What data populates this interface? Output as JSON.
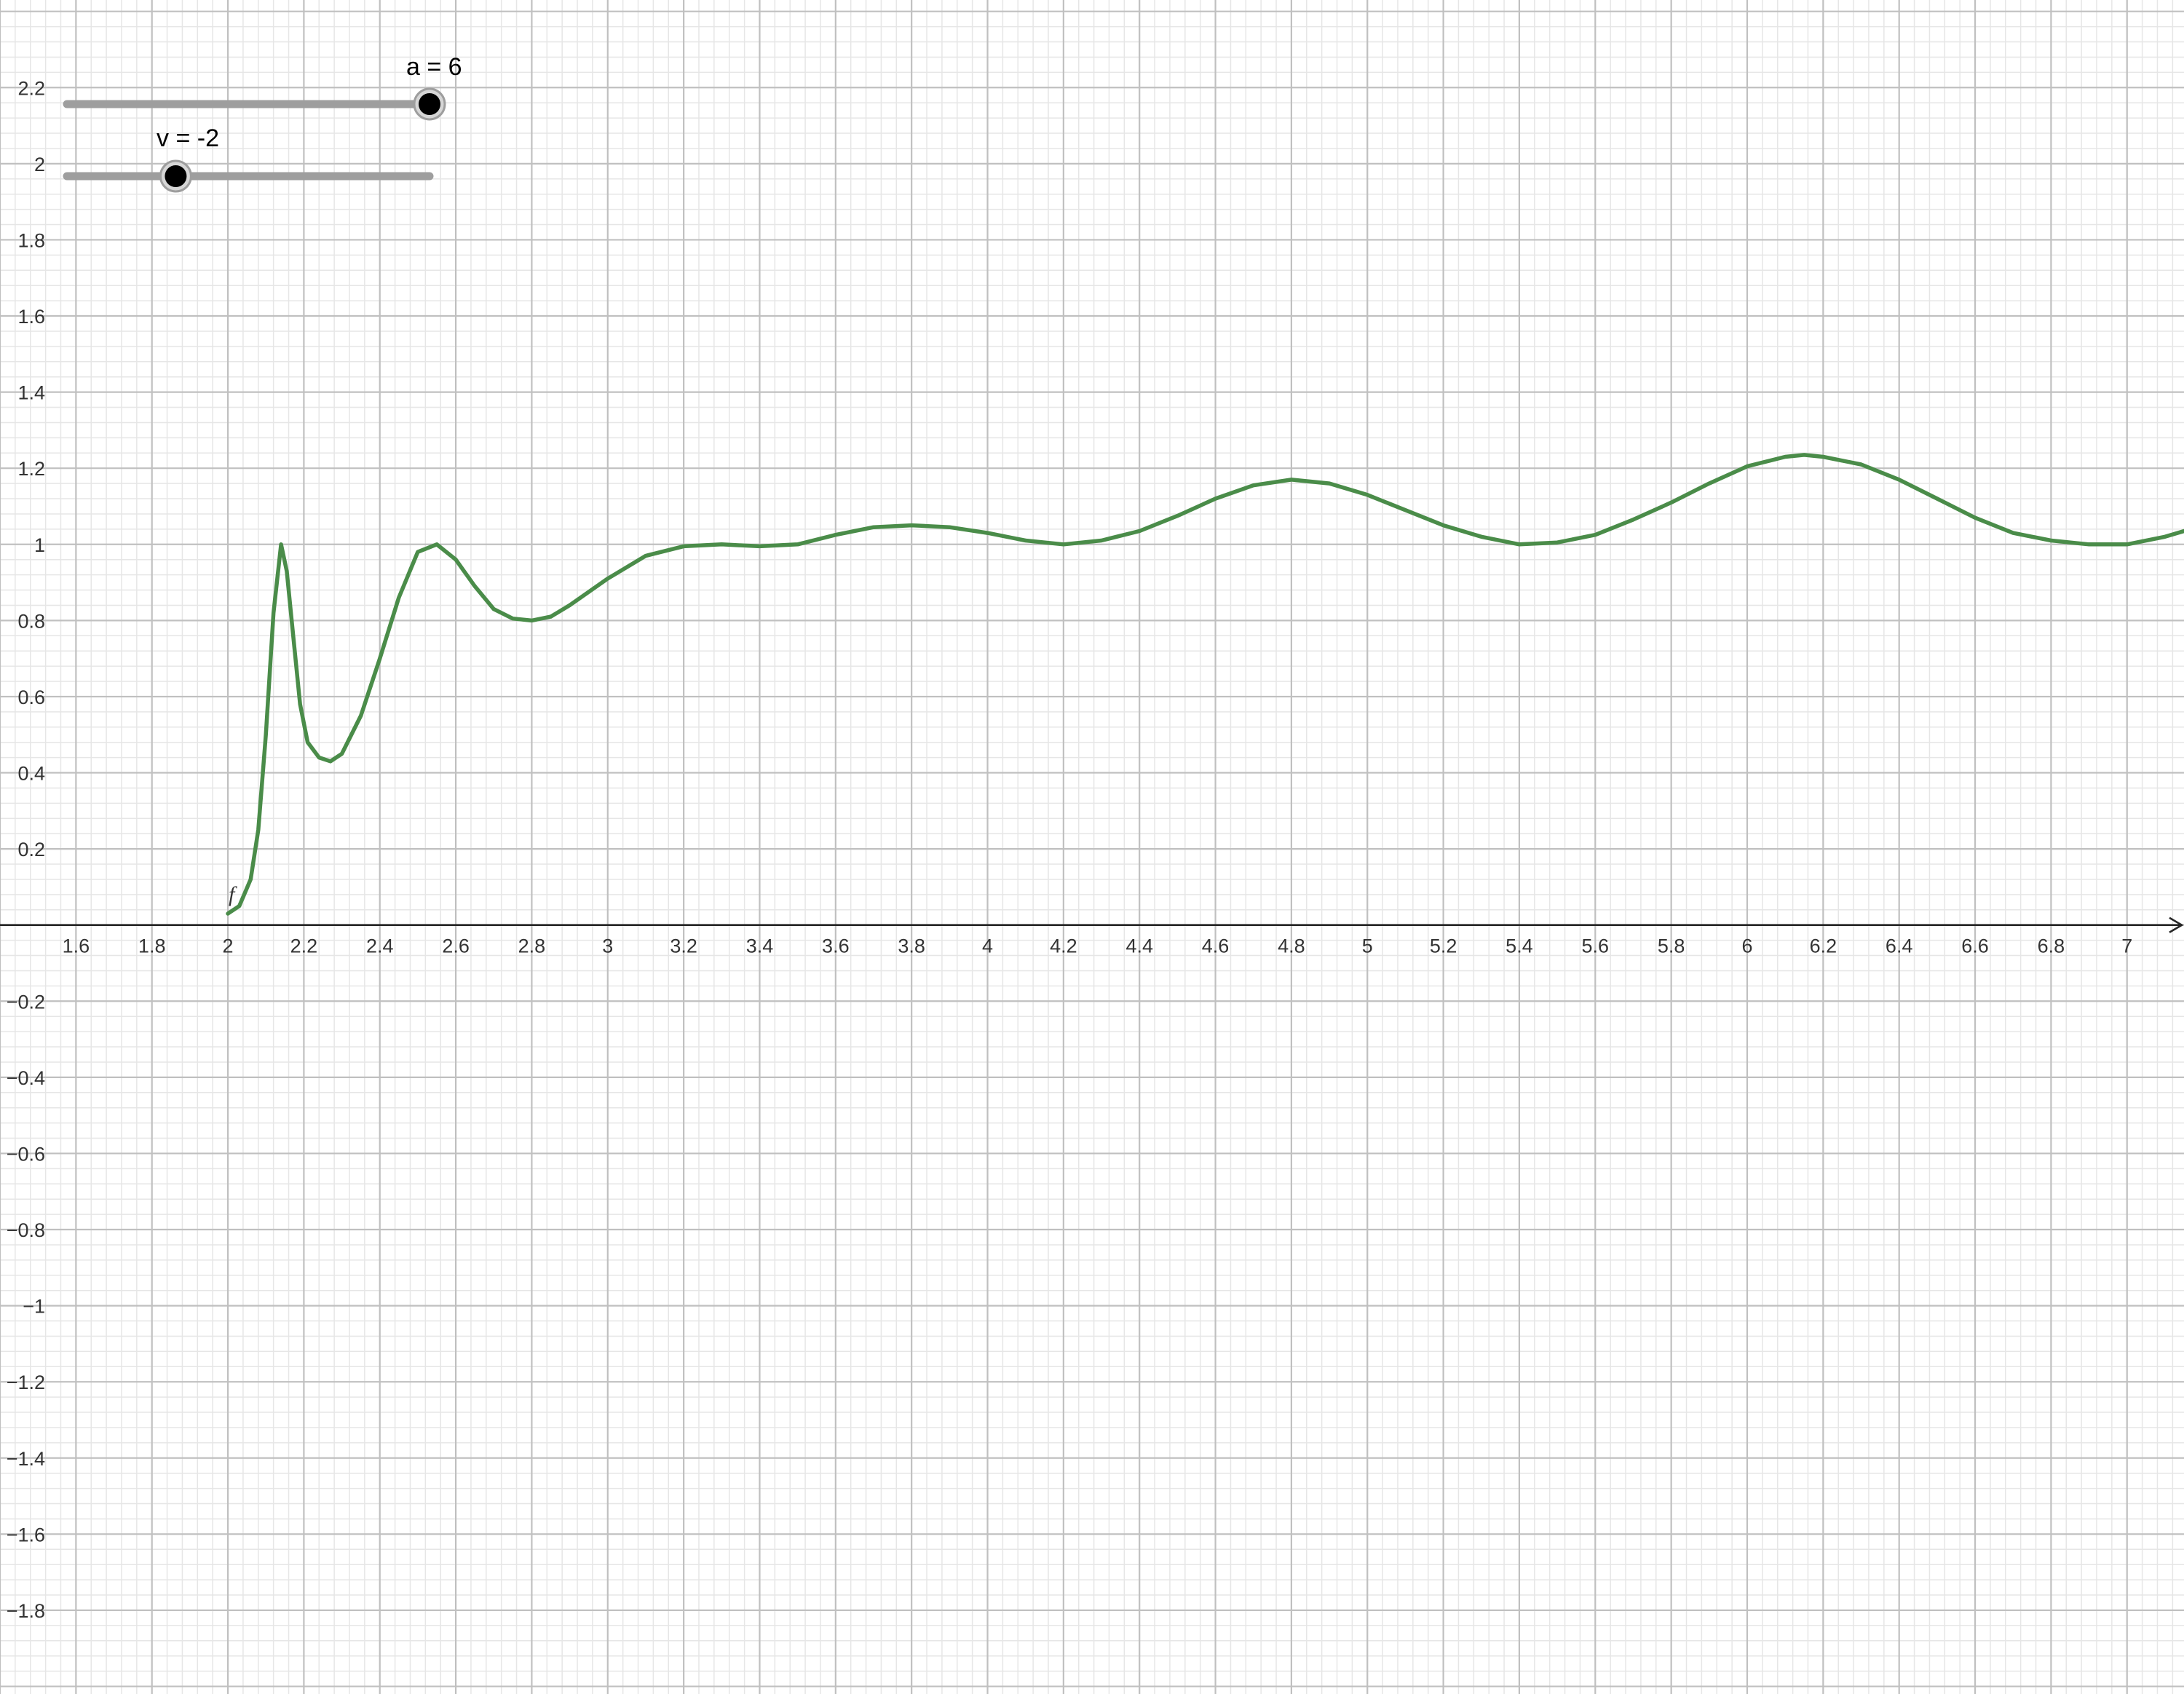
{
  "app": {
    "graph_view": {
      "x_axis": {
        "min": 1.4,
        "max": 7.15,
        "ticks": [
          "1.6",
          "1.8",
          "2",
          "2.2",
          "2.4",
          "2.6",
          "2.8",
          "3",
          "3.2",
          "3.4",
          "3.6",
          "3.8",
          "4",
          "4.2",
          "4.4",
          "4.6",
          "4.8",
          "5",
          "5.2",
          "5.4",
          "5.6",
          "5.8",
          "6",
          "6.2",
          "6.4",
          "6.6",
          "6.8",
          "7"
        ]
      },
      "y_axis": {
        "min": -2.02,
        "max": 2.43,
        "ticks": [
          "2.2",
          "2",
          "1.8",
          "1.6",
          "1.4",
          "1.2",
          "1",
          "0.8",
          "0.6",
          "0.4",
          "0.2",
          "−0.2",
          "−0.4",
          "−0.6",
          "−0.8",
          "−1",
          "−1.2",
          "−1.4",
          "−1.6",
          "−1.8"
        ]
      },
      "grid": true
    },
    "sliders": [
      {
        "name": "a",
        "label": "a = 6",
        "value": 6,
        "min": -5,
        "max": 6,
        "fraction": 1.0
      },
      {
        "name": "v",
        "label": "v = -2",
        "value": -2,
        "min": -5,
        "max": 5,
        "fraction": 0.3
      }
    ],
    "function": {
      "label": "f",
      "color": "#4a8c49",
      "points": [
        [
          2.0,
          0.03
        ],
        [
          2.03,
          0.05
        ],
        [
          2.06,
          0.12
        ],
        [
          2.08,
          0.25
        ],
        [
          2.1,
          0.5
        ],
        [
          2.12,
          0.82
        ],
        [
          2.14,
          1.0
        ],
        [
          2.155,
          0.93
        ],
        [
          2.17,
          0.78
        ],
        [
          2.19,
          0.58
        ],
        [
          2.21,
          0.48
        ],
        [
          2.24,
          0.44
        ],
        [
          2.27,
          0.43
        ],
        [
          2.3,
          0.45
        ],
        [
          2.35,
          0.55
        ],
        [
          2.4,
          0.7
        ],
        [
          2.45,
          0.86
        ],
        [
          2.5,
          0.98
        ],
        [
          2.55,
          1.0
        ],
        [
          2.6,
          0.96
        ],
        [
          2.65,
          0.89
        ],
        [
          2.7,
          0.83
        ],
        [
          2.75,
          0.805
        ],
        [
          2.8,
          0.8
        ],
        [
          2.85,
          0.81
        ],
        [
          2.9,
          0.84
        ],
        [
          3.0,
          0.91
        ],
        [
          3.1,
          0.97
        ],
        [
          3.2,
          0.995
        ],
        [
          3.3,
          1.0
        ],
        [
          3.4,
          0.995
        ],
        [
          3.5,
          1.0
        ],
        [
          3.6,
          1.025
        ],
        [
          3.7,
          1.045
        ],
        [
          3.8,
          1.05
        ],
        [
          3.9,
          1.045
        ],
        [
          4.0,
          1.03
        ],
        [
          4.1,
          1.01
        ],
        [
          4.2,
          1.0
        ],
        [
          4.3,
          1.01
        ],
        [
          4.4,
          1.035
        ],
        [
          4.5,
          1.075
        ],
        [
          4.6,
          1.12
        ],
        [
          4.7,
          1.155
        ],
        [
          4.8,
          1.17
        ],
        [
          4.9,
          1.16
        ],
        [
          5.0,
          1.13
        ],
        [
          5.1,
          1.09
        ],
        [
          5.2,
          1.05
        ],
        [
          5.3,
          1.02
        ],
        [
          5.4,
          1.0
        ],
        [
          5.5,
          1.005
        ],
        [
          5.6,
          1.025
        ],
        [
          5.7,
          1.065
        ],
        [
          5.8,
          1.11
        ],
        [
          5.9,
          1.16
        ],
        [
          6.0,
          1.205
        ],
        [
          6.1,
          1.23
        ],
        [
          6.15,
          1.235
        ],
        [
          6.2,
          1.23
        ],
        [
          6.3,
          1.21
        ],
        [
          6.4,
          1.17
        ],
        [
          6.5,
          1.12
        ],
        [
          6.6,
          1.07
        ],
        [
          6.7,
          1.03
        ],
        [
          6.8,
          1.01
        ],
        [
          6.9,
          1.0
        ],
        [
          7.0,
          1.0
        ],
        [
          7.1,
          1.02
        ],
        [
          7.15,
          1.035
        ]
      ]
    },
    "colors": {
      "axis": "#252525",
      "grid_major": "#c0c0c0",
      "grid_minor": "#e6e6e6",
      "slider_track": "#9e9e9e",
      "slider_knob": "#000000",
      "curve": "#4a8c49"
    }
  }
}
